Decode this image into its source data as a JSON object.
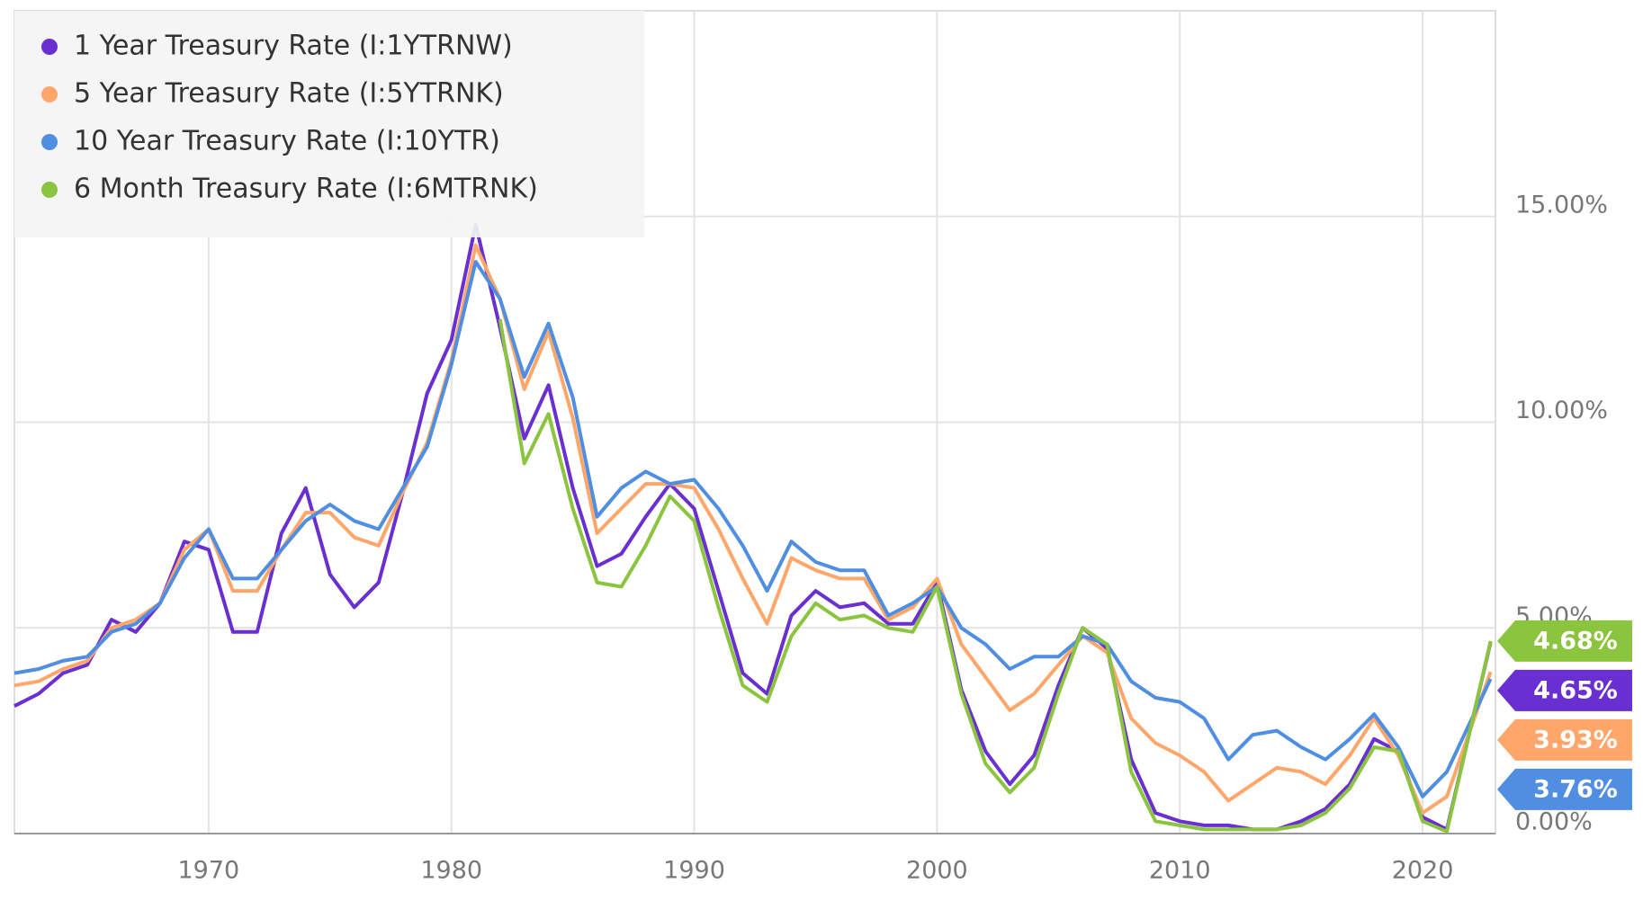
{
  "chart_data": {
    "type": "line",
    "x": [
      1962,
      1963,
      1964,
      1965,
      1966,
      1967,
      1968,
      1969,
      1970,
      1971,
      1972,
      1973,
      1974,
      1975,
      1976,
      1977,
      1978,
      1979,
      1980,
      1981,
      1982,
      1983,
      1984,
      1985,
      1986,
      1987,
      1988,
      1989,
      1990,
      1991,
      1992,
      1993,
      1994,
      1995,
      1996,
      1997,
      1998,
      1999,
      2000,
      2001,
      2002,
      2003,
      2004,
      2005,
      2006,
      2007,
      2008,
      2009,
      2010,
      2011,
      2012,
      2013,
      2014,
      2015,
      2016,
      2017,
      2018,
      2019,
      2020,
      2021,
      2022.8
    ],
    "series": [
      {
        "name": "1 Year Treasury Rate (I:1YTRNW)",
        "color": "#6a2fd0",
        "values": [
          3.1,
          3.4,
          3.9,
          4.1,
          5.2,
          4.9,
          5.6,
          7.1,
          6.9,
          4.9,
          4.9,
          7.3,
          8.4,
          6.3,
          5.5,
          6.1,
          8.3,
          10.7,
          12.0,
          14.8,
          12.3,
          9.6,
          10.9,
          8.4,
          6.5,
          6.8,
          7.7,
          8.5,
          7.9,
          5.9,
          3.9,
          3.4,
          5.3,
          5.9,
          5.5,
          5.6,
          5.1,
          5.1,
          6.1,
          3.5,
          2.0,
          1.2,
          1.9,
          3.6,
          5.0,
          4.5,
          1.8,
          0.5,
          0.3,
          0.2,
          0.2,
          0.1,
          0.1,
          0.3,
          0.6,
          1.2,
          2.3,
          2.0,
          0.4,
          0.1,
          4.65
        ],
        "last_value": {
          "value": 4.65,
          "label": "4.65%"
        }
      },
      {
        "name": "5 Year Treasury Rate (I:5YTRNK)",
        "color": "#ffa66b",
        "values": [
          3.6,
          3.7,
          4.0,
          4.2,
          5.0,
          5.2,
          5.6,
          6.9,
          7.4,
          5.9,
          5.9,
          6.9,
          7.8,
          7.8,
          7.2,
          7.0,
          8.3,
          9.5,
          11.5,
          14.3,
          13.0,
          10.8,
          12.2,
          10.1,
          7.3,
          7.9,
          8.5,
          8.5,
          8.4,
          7.4,
          6.2,
          5.1,
          6.7,
          6.4,
          6.2,
          6.2,
          5.2,
          5.5,
          6.2,
          4.6,
          3.8,
          3.0,
          3.4,
          4.1,
          4.8,
          4.4,
          2.8,
          2.2,
          1.9,
          1.5,
          0.8,
          1.2,
          1.6,
          1.5,
          1.2,
          1.9,
          2.8,
          1.9,
          0.5,
          0.9,
          3.93
        ],
        "last_value": {
          "value": 3.93,
          "label": "3.93%"
        }
      },
      {
        "name": "10 Year Treasury Rate (I:10YTR)",
        "color": "#4f8ee0",
        "values": [
          3.9,
          4.0,
          4.2,
          4.3,
          4.9,
          5.1,
          5.6,
          6.7,
          7.4,
          6.2,
          6.2,
          6.9,
          7.6,
          8.0,
          7.6,
          7.4,
          8.4,
          9.4,
          11.4,
          13.9,
          13.0,
          11.1,
          12.4,
          10.6,
          7.7,
          8.4,
          8.8,
          8.5,
          8.6,
          7.9,
          7.0,
          5.9,
          7.1,
          6.6,
          6.4,
          6.4,
          5.3,
          5.6,
          6.0,
          5.0,
          4.6,
          4.0,
          4.3,
          4.3,
          4.8,
          4.6,
          3.7,
          3.3,
          3.2,
          2.8,
          1.8,
          2.4,
          2.5,
          2.1,
          1.8,
          2.3,
          2.9,
          2.1,
          0.9,
          1.5,
          3.76
        ],
        "last_value": {
          "value": 3.76,
          "label": "3.76%"
        }
      },
      {
        "name": "6 Month Treasury Rate (I:6MTRNK)",
        "color": "#8bc43f",
        "values": [
          null,
          null,
          null,
          null,
          null,
          null,
          null,
          null,
          null,
          null,
          null,
          null,
          null,
          null,
          null,
          null,
          null,
          null,
          null,
          null,
          12.5,
          9.0,
          10.2,
          7.9,
          6.1,
          6.0,
          7.0,
          8.2,
          7.6,
          5.5,
          3.6,
          3.2,
          4.8,
          5.6,
          5.2,
          5.3,
          5.0,
          4.9,
          6.0,
          3.4,
          1.7,
          1.0,
          1.6,
          3.4,
          5.0,
          4.6,
          1.5,
          0.3,
          0.2,
          0.1,
          0.1,
          0.1,
          0.1,
          0.2,
          0.5,
          1.1,
          2.1,
          2.0,
          0.3,
          0.05,
          4.68
        ],
        "last_value": {
          "value": 4.68,
          "label": "4.68%"
        }
      }
    ],
    "xlim": [
      1962,
      2023
    ],
    "xticks": [
      1970,
      1980,
      1990,
      2000,
      2010,
      2020
    ],
    "ylim": [
      0,
      20
    ],
    "yticks": [
      {
        "value": 0,
        "label": "0.00%"
      },
      {
        "value": 5,
        "label": "5.00%"
      },
      {
        "value": 10,
        "label": "10.00%"
      },
      {
        "value": 15,
        "label": "15.00%"
      }
    ],
    "grid": true,
    "legend": "top-left"
  }
}
